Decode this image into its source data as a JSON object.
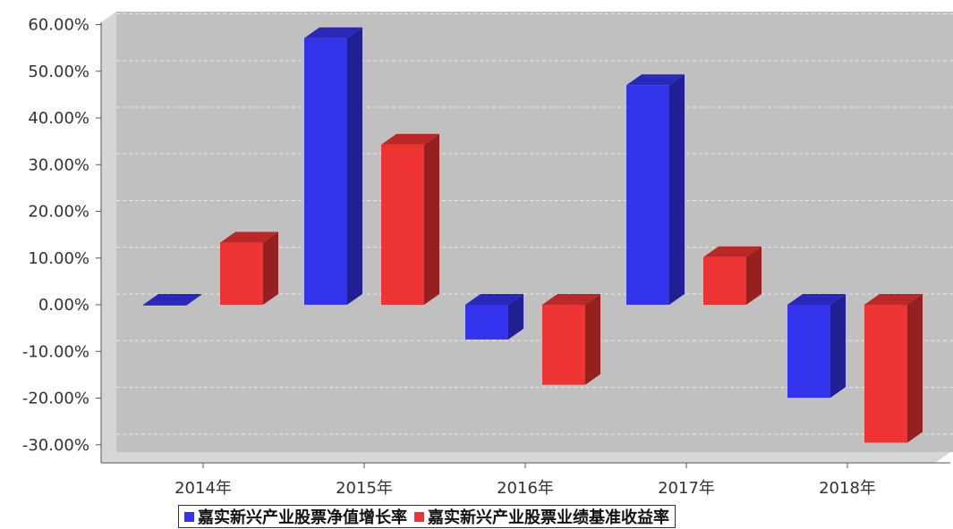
{
  "chart_data": {
    "type": "bar",
    "categories": [
      "2014年",
      "2015年",
      "2016年",
      "2017年",
      "2018年"
    ],
    "series": [
      {
        "name": "嘉实新兴产业股票净值增长率",
        "values": [
          -0.03,
          57.1,
          -7.45,
          47.03,
          -19.93
        ],
        "color": "#3333ee"
      },
      {
        "name": "嘉实新兴产业股票业绩基准收益率",
        "values": [
          13.29,
          34.29,
          -17.15,
          10.19,
          -29.55
        ],
        "color": "#ee3333"
      }
    ],
    "yticks": [
      "60.00%",
      "50.00%",
      "40.00%",
      "30.00%",
      "20.00%",
      "10.00%",
      "0.00%",
      "-10.00%",
      "-20.00%",
      "-30.00%"
    ],
    "ylim": [
      -30,
      60
    ],
    "grid": true,
    "legend_position": "bottom",
    "title": "",
    "xlabel": "",
    "ylabel": ""
  }
}
